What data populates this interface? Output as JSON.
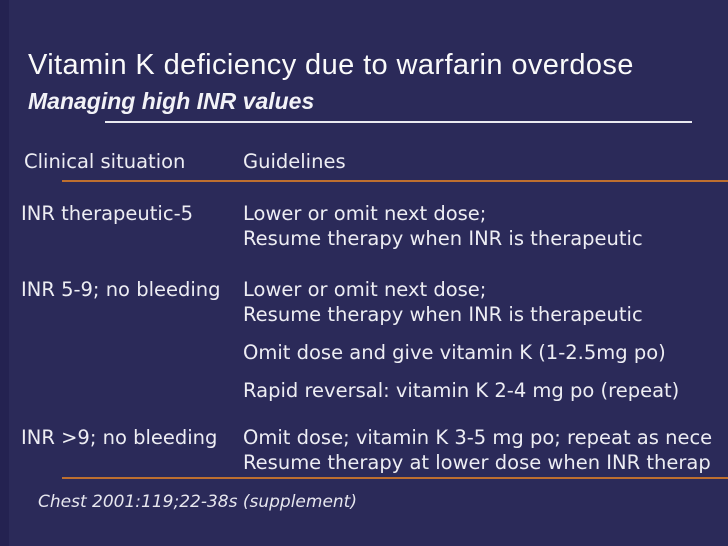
{
  "slide": {
    "title": "Vitamin K deficiency due to warfarin overdose",
    "subtitle": "Managing high INR values",
    "footer": "Chest 2001:119;22-38s (supplement)"
  },
  "table": {
    "headers": {
      "col1": "Clinical situation",
      "col2": "Guidelines"
    },
    "rows": [
      {
        "situation": "INR therapeutic-5",
        "paragraphs": [
          [
            "Lower or omit next dose;",
            "Resume therapy when INR is therapeutic"
          ]
        ]
      },
      {
        "situation": "INR 5-9; no bleeding",
        "paragraphs": [
          [
            "Lower or omit next dose;",
            "Resume therapy when INR is therapeutic"
          ],
          [
            "Omit dose and give vitamin K (1-2.5mg po)"
          ],
          [
            "Rapid reversal: vitamin K 2-4 mg po (repeat)"
          ]
        ]
      },
      {
        "situation": "INR >9; no bleeding",
        "paragraphs": [
          [
            "Omit dose; vitamin K 3-5 mg po; repeat as nece",
            "Resume therapy at lower dose when INR therap"
          ]
        ]
      }
    ]
  },
  "colors": {
    "background": "#2B2A59",
    "accent_rule": "#BE6F2F",
    "subtitle_rule": "#E9E9F0",
    "text": "#EDEDF3"
  }
}
